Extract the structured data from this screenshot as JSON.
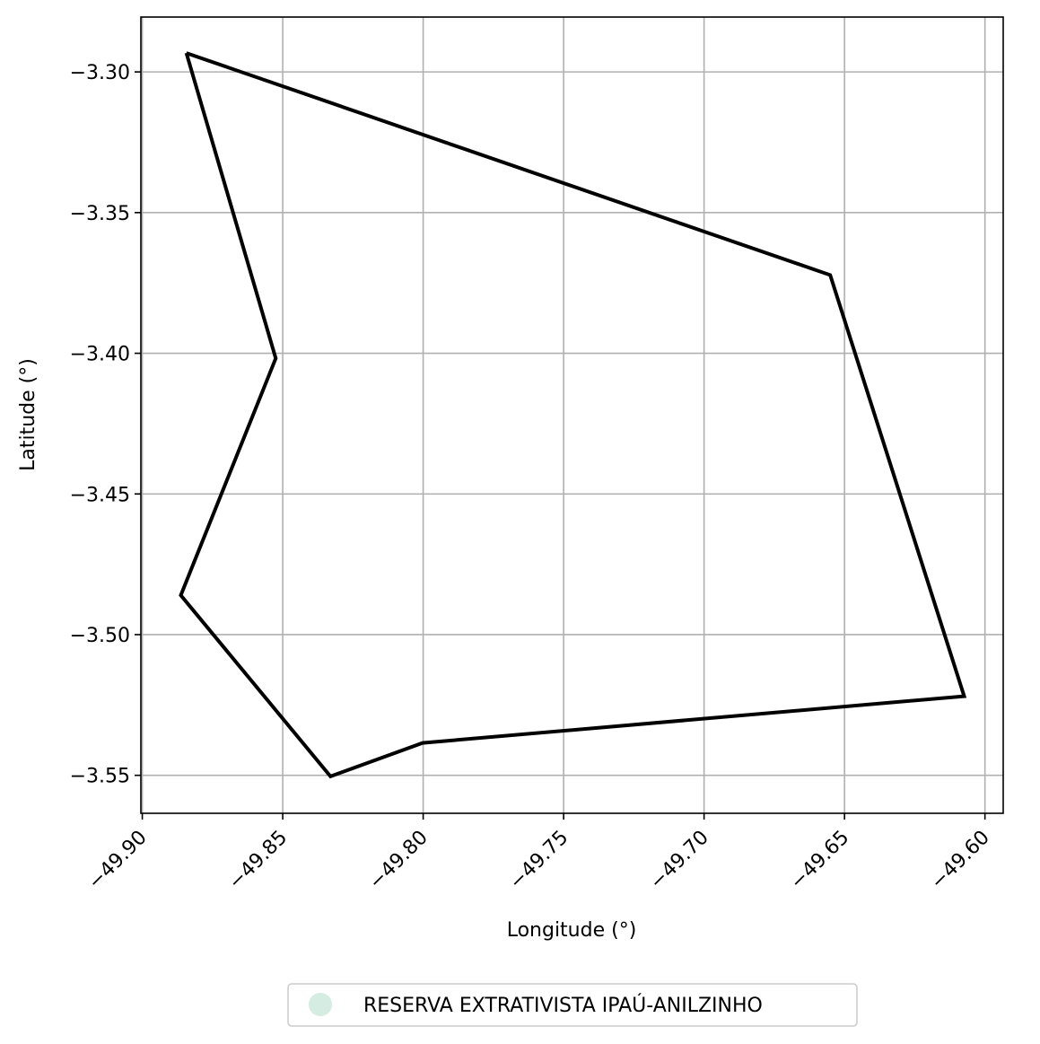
{
  "chart_data": {
    "type": "map-polygon",
    "title": "",
    "xlabel": "Longitude (°)",
    "ylabel": "Latitude (°)",
    "xlim": [
      -49.9005,
      -49.5935
    ],
    "ylim": [
      -3.5635,
      -3.2805
    ],
    "xticks": [
      -49.9,
      -49.85,
      -49.8,
      -49.75,
      -49.7,
      -49.65,
      -49.6
    ],
    "xtick_labels": [
      "−49.90",
      "−49.85",
      "−49.80",
      "−49.75",
      "−49.70",
      "−49.65",
      "−49.60"
    ],
    "yticks": [
      -3.3,
      -3.35,
      -3.4,
      -3.45,
      -3.5,
      -3.55
    ],
    "ytick_labels": [
      "−3.30",
      "−3.35",
      "−3.40",
      "−3.45",
      "−3.50",
      "−3.55"
    ],
    "grid": true,
    "boundary_color": "#000000",
    "legend": {
      "placement": "bottom-center",
      "entries": [
        {
          "label": "RESERVA EXTRATIVISTA IPAÚ-ANILZINHO",
          "marker": "circle",
          "color": "#d4ece1"
        }
      ]
    },
    "polygon": {
      "name": "RESERVA EXTRATIVISTA IPAÚ-ANILZINHO",
      "lon": [
        -49.8843,
        -49.6551,
        -49.6074,
        -49.8002,
        -49.833,
        -49.8863,
        -49.8525,
        -49.8843
      ],
      "lat": [
        -3.2933,
        -3.3722,
        -3.5219,
        -3.5385,
        -3.5504,
        -3.486,
        -3.4018,
        -3.2933
      ]
    }
  }
}
